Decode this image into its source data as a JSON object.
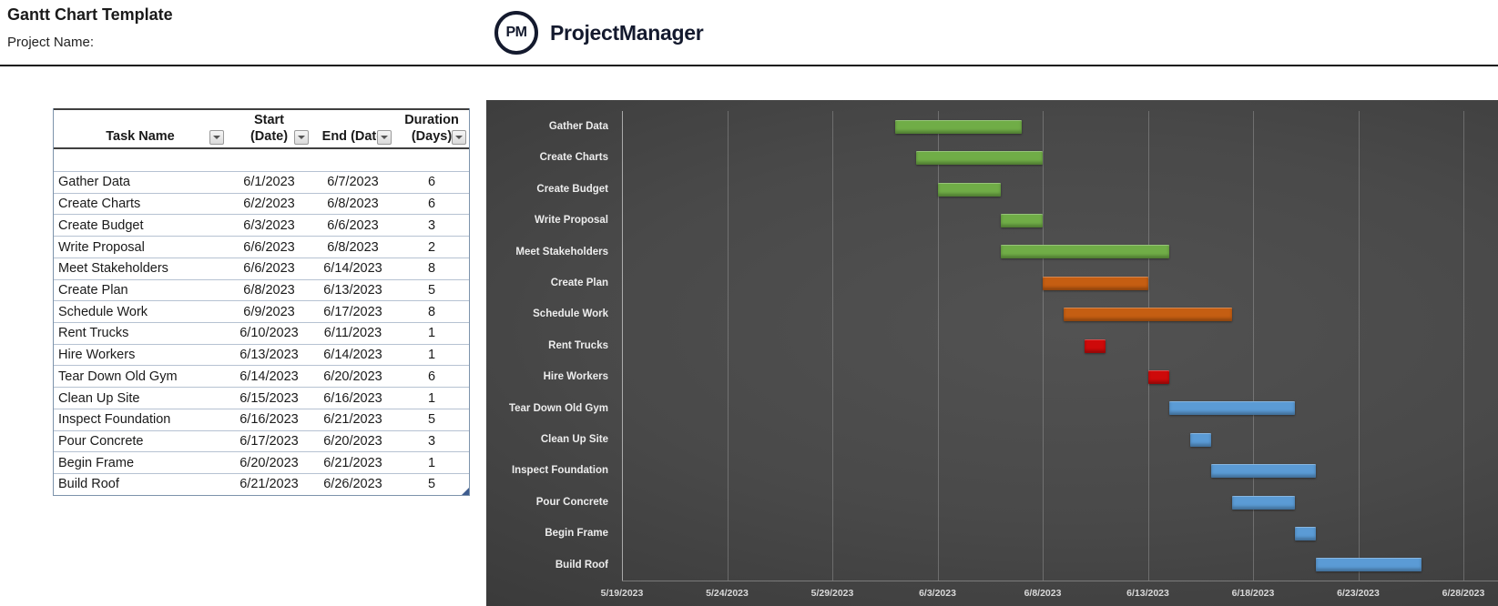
{
  "header": {
    "title": "Gantt Chart Template",
    "project_name_label": "Project Name:",
    "logo": {
      "monogram": "PM",
      "brand": "ProjectManager"
    }
  },
  "table": {
    "columns": [
      {
        "line1": "",
        "line2": "Task Name"
      },
      {
        "line1": "Start",
        "line2": "(Date)"
      },
      {
        "line1": "",
        "line2": "End  (Date"
      },
      {
        "line1": "Duration",
        "line2": "(Days)"
      }
    ],
    "rows": [
      {
        "task": "Gather Data",
        "start": "6/1/2023",
        "end": "6/7/2023",
        "duration": "6"
      },
      {
        "task": "Create Charts",
        "start": "6/2/2023",
        "end": "6/8/2023",
        "duration": "6"
      },
      {
        "task": "Create Budget",
        "start": "6/3/2023",
        "end": "6/6/2023",
        "duration": "3"
      },
      {
        "task": "Write Proposal",
        "start": "6/6/2023",
        "end": "6/8/2023",
        "duration": "2"
      },
      {
        "task": "Meet Stakeholders",
        "start": "6/6/2023",
        "end": "6/14/2023",
        "duration": "8"
      },
      {
        "task": "Create Plan",
        "start": "6/8/2023",
        "end": "6/13/2023",
        "duration": "5"
      },
      {
        "task": "Schedule Work",
        "start": "6/9/2023",
        "end": "6/17/2023",
        "duration": "8"
      },
      {
        "task": "Rent Trucks",
        "start": "6/10/2023",
        "end": "6/11/2023",
        "duration": "1"
      },
      {
        "task": "Hire Workers",
        "start": "6/13/2023",
        "end": "6/14/2023",
        "duration": "1"
      },
      {
        "task": "Tear Down Old Gym",
        "start": "6/14/2023",
        "end": "6/20/2023",
        "duration": "6"
      },
      {
        "task": "Clean Up Site",
        "start": "6/15/2023",
        "end": "6/16/2023",
        "duration": "1"
      },
      {
        "task": "Inspect Foundation",
        "start": "6/16/2023",
        "end": "6/21/2023",
        "duration": "5"
      },
      {
        "task": "Pour Concrete",
        "start": "6/17/2023",
        "end": "6/20/2023",
        "duration": "3"
      },
      {
        "task": "Begin Frame",
        "start": "6/20/2023",
        "end": "6/21/2023",
        "duration": "1"
      },
      {
        "task": "Build Roof",
        "start": "6/21/2023",
        "end": "6/26/2023",
        "duration": "5"
      }
    ]
  },
  "chart_data": {
    "type": "bar",
    "subtype": "gantt",
    "title": "",
    "x_axis": {
      "start_date": "5/19/2023",
      "tick_interval_days": 5,
      "tick_labels": [
        "5/19/2023",
        "5/24/2023",
        "5/29/2023",
        "6/3/2023",
        "6/8/2023",
        "6/13/2023",
        "6/18/2023",
        "6/23/2023",
        "6/28/2023"
      ]
    },
    "palette": {
      "green": "#70AD47",
      "orange": "#C55E12",
      "red": "#CE0A0A",
      "blue": "#5B9BD5"
    },
    "background": "#454545",
    "tasks": [
      {
        "name": "Gather Data",
        "start": "6/1/2023",
        "end": "6/7/2023",
        "duration_days": 6,
        "color": "green"
      },
      {
        "name": "Create Charts",
        "start": "6/2/2023",
        "end": "6/8/2023",
        "duration_days": 6,
        "color": "green"
      },
      {
        "name": "Create Budget",
        "start": "6/3/2023",
        "end": "6/6/2023",
        "duration_days": 3,
        "color": "green"
      },
      {
        "name": "Write Proposal",
        "start": "6/6/2023",
        "end": "6/8/2023",
        "duration_days": 2,
        "color": "green"
      },
      {
        "name": "Meet Stakeholders",
        "start": "6/6/2023",
        "end": "6/14/2023",
        "duration_days": 8,
        "color": "green"
      },
      {
        "name": "Create Plan",
        "start": "6/8/2023",
        "end": "6/13/2023",
        "duration_days": 5,
        "color": "orange"
      },
      {
        "name": "Schedule Work",
        "start": "6/9/2023",
        "end": "6/17/2023",
        "duration_days": 8,
        "color": "orange"
      },
      {
        "name": "Rent Trucks",
        "start": "6/10/2023",
        "end": "6/11/2023",
        "duration_days": 1,
        "color": "red"
      },
      {
        "name": "Hire Workers",
        "start": "6/13/2023",
        "end": "6/14/2023",
        "duration_days": 1,
        "color": "red"
      },
      {
        "name": "Tear Down Old Gym",
        "start": "6/14/2023",
        "end": "6/20/2023",
        "duration_days": 6,
        "color": "blue"
      },
      {
        "name": "Clean Up Site",
        "start": "6/15/2023",
        "end": "6/16/2023",
        "duration_days": 1,
        "color": "blue"
      },
      {
        "name": "Inspect Foundation",
        "start": "6/16/2023",
        "end": "6/21/2023",
        "duration_days": 5,
        "color": "blue"
      },
      {
        "name": "Pour Concrete",
        "start": "6/17/2023",
        "end": "6/20/2023",
        "duration_days": 3,
        "color": "blue"
      },
      {
        "name": "Begin Frame",
        "start": "6/20/2023",
        "end": "6/21/2023",
        "duration_days": 1,
        "color": "blue"
      },
      {
        "name": "Build Roof",
        "start": "6/21/2023",
        "end": "6/26/2023",
        "duration_days": 5,
        "color": "blue"
      }
    ]
  }
}
